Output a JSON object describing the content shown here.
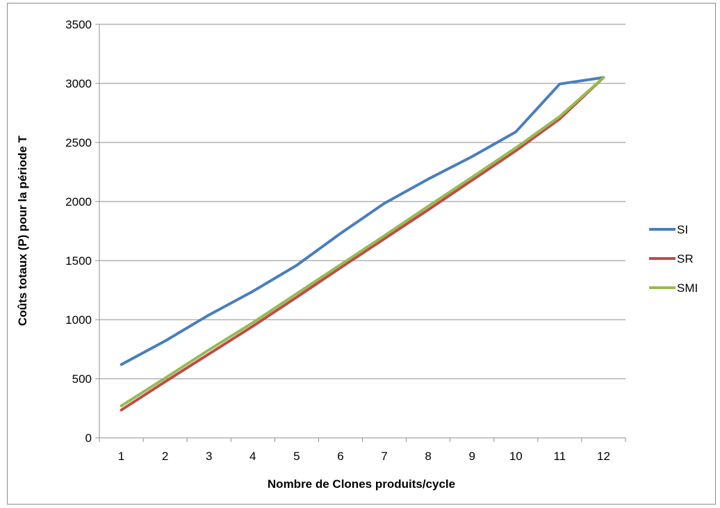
{
  "chart_data": {
    "type": "line",
    "title": "",
    "xlabel": "Nombre de Clones produits/cycle",
    "ylabel": "Coûts totaux (P) pour la période T",
    "categories": [
      "1",
      "2",
      "3",
      "4",
      "5",
      "6",
      "7",
      "8",
      "9",
      "10",
      "11",
      "12"
    ],
    "ylim": [
      0,
      3500
    ],
    "yticks": [
      "0",
      "500",
      "1000",
      "1500",
      "2000",
      "2500",
      "3000",
      "3500"
    ],
    "grid": true,
    "legend_position": "right",
    "series": [
      {
        "name": "SI",
        "color": "#4a7ebb",
        "values": [
          620,
          820,
          1040,
          1240,
          1460,
          1730,
          1985,
          2190,
          2380,
          2590,
          2995,
          3050
        ]
      },
      {
        "name": "SR",
        "color": "#be4b48",
        "values": [
          235,
          475,
          710,
          945,
          1190,
          1440,
          1685,
          1930,
          2180,
          2430,
          2700,
          3050
        ]
      },
      {
        "name": "SMI",
        "color": "#98b954",
        "values": [
          270,
          505,
          745,
          975,
          1220,
          1465,
          1710,
          1960,
          2205,
          2455,
          2720,
          3050
        ]
      }
    ]
  }
}
